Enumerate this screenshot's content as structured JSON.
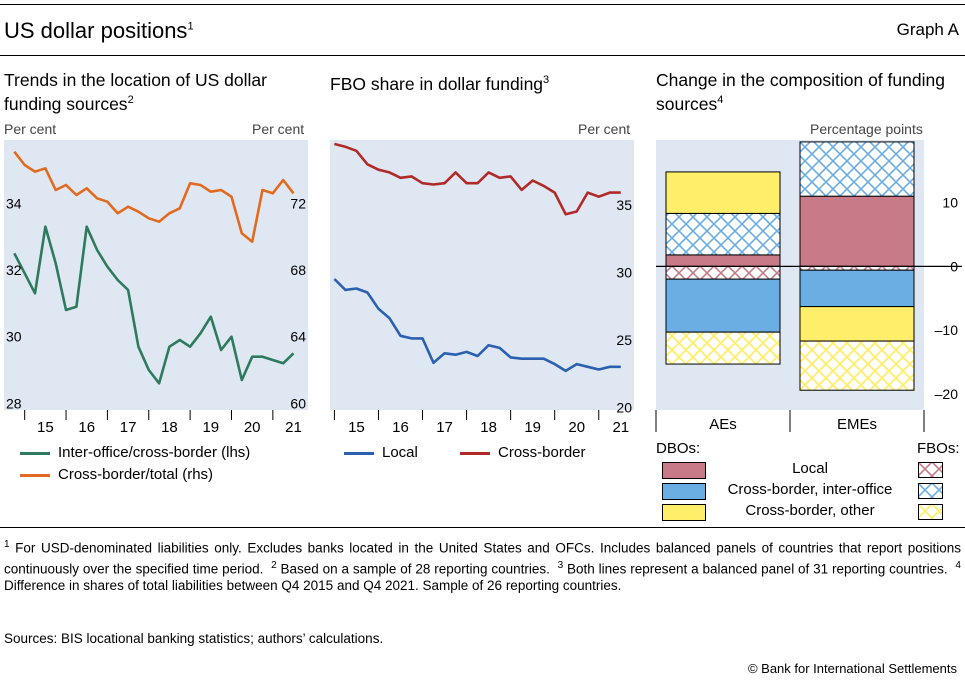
{
  "header": {
    "title": "US dollar positions",
    "title_sup": "1",
    "graph_label": "Graph A"
  },
  "colors": {
    "panel_bg": "#dfe8f2",
    "green": "#2e7a5c",
    "orange": "#e26a1f",
    "blue": "#2b5fb0",
    "red": "#b02a2a",
    "local_fill": "#c87a88",
    "io_fill": "#6aaee3",
    "other_fill": "#ffee6a"
  },
  "chart_data": [
    {
      "type": "line",
      "title": "Trends in the location of US dollar funding sources",
      "title_sup": "2",
      "ylabel_left": "Per cent",
      "ylabel_right": "Per cent",
      "xlim": [
        2014.5,
        2021.85
      ],
      "ylim_left": [
        27.8,
        35.9
      ],
      "ylim_right": [
        59.6,
        75.8
      ],
      "xticks": [
        "15",
        "16",
        "17",
        "18",
        "19",
        "20",
        "21"
      ],
      "yticks_left": [
        "28",
        "30",
        "32",
        "34"
      ],
      "yticks_right": [
        "60",
        "64",
        "68",
        "72"
      ],
      "series": [
        {
          "name": "Inter-office/cross-border (lhs)",
          "axis": "left",
          "color": "green",
          "x": [
            14.75,
            15.0,
            15.25,
            15.5,
            15.75,
            16.0,
            16.25,
            16.5,
            16.75,
            17.0,
            17.25,
            17.5,
            17.75,
            18.0,
            18.25,
            18.5,
            18.75,
            19.0,
            19.25,
            19.5,
            19.75,
            20.0,
            20.25,
            20.5,
            20.75,
            21.0,
            21.25,
            21.5
          ],
          "y": [
            32.5,
            31.9,
            31.3,
            33.3,
            32.2,
            30.8,
            30.9,
            33.3,
            32.6,
            32.1,
            31.7,
            31.4,
            29.7,
            29.0,
            28.6,
            29.7,
            29.9,
            29.7,
            30.1,
            30.6,
            29.6,
            30.0,
            28.7,
            29.4,
            29.4,
            29.3,
            29.2,
            29.5
          ]
        },
        {
          "name": "Cross-border/total (rhs)",
          "axis": "right",
          "color": "orange",
          "x": [
            14.75,
            15.0,
            15.25,
            15.5,
            15.75,
            16.0,
            16.25,
            16.5,
            16.75,
            17.0,
            17.25,
            17.5,
            17.75,
            18.0,
            18.25,
            18.5,
            18.75,
            19.0,
            19.25,
            19.5,
            19.75,
            20.0,
            20.25,
            20.5,
            20.75,
            21.0,
            21.25,
            21.5
          ],
          "y": [
            75.1,
            74.3,
            73.9,
            74.1,
            72.8,
            73.1,
            72.5,
            72.9,
            72.3,
            72.1,
            71.4,
            71.8,
            71.5,
            71.1,
            70.9,
            71.4,
            71.7,
            73.2,
            73.1,
            72.7,
            72.8,
            72.4,
            70.2,
            69.7,
            72.8,
            72.6,
            73.4,
            72.6
          ]
        }
      ]
    },
    {
      "type": "line",
      "title": "FBO share in dollar funding",
      "title_sup": "3",
      "ylabel_right": "Per cent",
      "xlim": [
        2014.9,
        2021.8
      ],
      "ylim": [
        19.8,
        39.8
      ],
      "xticks": [
        "15",
        "16",
        "17",
        "18",
        "19",
        "20",
        "21"
      ],
      "yticks_right": [
        "20",
        "25",
        "30",
        "35"
      ],
      "series": [
        {
          "name": "Local",
          "color": "blue",
          "x": [
            15.0,
            15.25,
            15.5,
            15.75,
            16.0,
            16.25,
            16.5,
            16.75,
            17.0,
            17.25,
            17.5,
            17.75,
            18.0,
            18.25,
            18.5,
            18.75,
            19.0,
            19.25,
            19.5,
            19.75,
            20.0,
            20.25,
            20.5,
            20.75,
            21.0,
            21.25,
            21.5
          ],
          "y": [
            29.5,
            28.7,
            28.8,
            28.5,
            27.3,
            26.6,
            25.3,
            25.1,
            25.1,
            23.3,
            24.0,
            23.9,
            24.1,
            23.8,
            24.6,
            24.4,
            23.7,
            23.6,
            23.6,
            23.6,
            23.2,
            22.7,
            23.2,
            23.0,
            22.8,
            23.0,
            23.0
          ]
        },
        {
          "name": "Cross-border",
          "color": "red",
          "x": [
            15.0,
            15.25,
            15.5,
            15.75,
            16.0,
            16.25,
            16.5,
            16.75,
            17.0,
            17.25,
            17.5,
            17.75,
            18.0,
            18.25,
            18.5,
            18.75,
            19.0,
            19.25,
            19.5,
            19.75,
            20.0,
            20.25,
            20.5,
            20.75,
            21.0,
            21.25,
            21.5
          ],
          "y": [
            39.5,
            39.3,
            39.0,
            38.0,
            37.6,
            37.4,
            37.0,
            37.1,
            36.6,
            36.5,
            36.6,
            37.4,
            36.6,
            36.6,
            37.4,
            37.0,
            37.1,
            36.1,
            36.8,
            36.4,
            35.9,
            34.3,
            34.5,
            35.9,
            35.6,
            35.9,
            35.9
          ]
        }
      ]
    },
    {
      "type": "bar",
      "stacked": true,
      "title": "Change in the composition of funding sources",
      "title_sup": "4",
      "ylabel_right": "Percentage points",
      "ylim": [
        -22.5,
        19.8
      ],
      "yticks_right": [
        "10",
        "0",
        "–10",
        "–20"
      ],
      "categories": [
        "AEs",
        "EMEs"
      ],
      "series": [
        {
          "name": "Local (DBOs)",
          "group": "DBOs",
          "pattern": "solid",
          "color": "local_fill",
          "values": [
            1.8,
            11.0
          ]
        },
        {
          "name": "Cross-border, inter-office (FBOs)",
          "group": "FBOs",
          "pattern": "hatch",
          "color": "io_fill",
          "values": [
            6.5,
            8.5
          ]
        },
        {
          "name": "Cross-border, other (DBOs)",
          "group": "DBOs",
          "pattern": "solid",
          "color": "other_fill",
          "values": [
            6.5,
            0
          ]
        },
        {
          "name": "Local (FBOs)",
          "group": "FBOs",
          "pattern": "hatch",
          "color": "local_fill",
          "values": [
            -2.0,
            -0.6
          ]
        },
        {
          "name": "Cross-border, inter-office (DBOs)",
          "group": "DBOs",
          "pattern": "solid",
          "color": "io_fill",
          "values": [
            -8.3,
            -5.7
          ]
        },
        {
          "name": "Cross-border, other (DBOs) neg",
          "group": "DBOs",
          "pattern": "solid",
          "color": "other_fill",
          "values": [
            0,
            -5.4
          ]
        },
        {
          "name": "Cross-border, other (FBOs)",
          "group": "FBOs",
          "pattern": "hatch",
          "color": "other_fill",
          "values": [
            -5.0,
            -7.7
          ]
        }
      ]
    }
  ],
  "legend1": {
    "items": [
      "Inter-office/cross-border (lhs)",
      "Cross-border/total (rhs)"
    ]
  },
  "legend2": {
    "items": [
      "Local",
      "Cross-border"
    ]
  },
  "legend3": {
    "dbos_label": "DBOs:",
    "fbos_label": "FBOs:",
    "rows": [
      "Local",
      "Cross-border, inter-office",
      "Cross-border, other"
    ]
  },
  "footnotes": {
    "n1_sup": "1",
    "n1": "For USD-denominated liabilities only. Excludes banks located in the United States and OFCs. Includes balanced panels of countries that report positions continuously over the specified time period.",
    "n2_sup": "2",
    "n2": "Based on a sample of 28 reporting countries.",
    "n3_sup": "3",
    "n3": "Both lines represent a balanced panel of 31 reporting countries.",
    "n4_sup": "4",
    "n4": "Difference in shares of total liabilities between Q4 2015 and Q4 2021. Sample of 26 reporting countries.",
    "sources": "Sources: BIS locational banking statistics; authors’ calculations.",
    "copyright": "© Bank for International Settlements"
  }
}
